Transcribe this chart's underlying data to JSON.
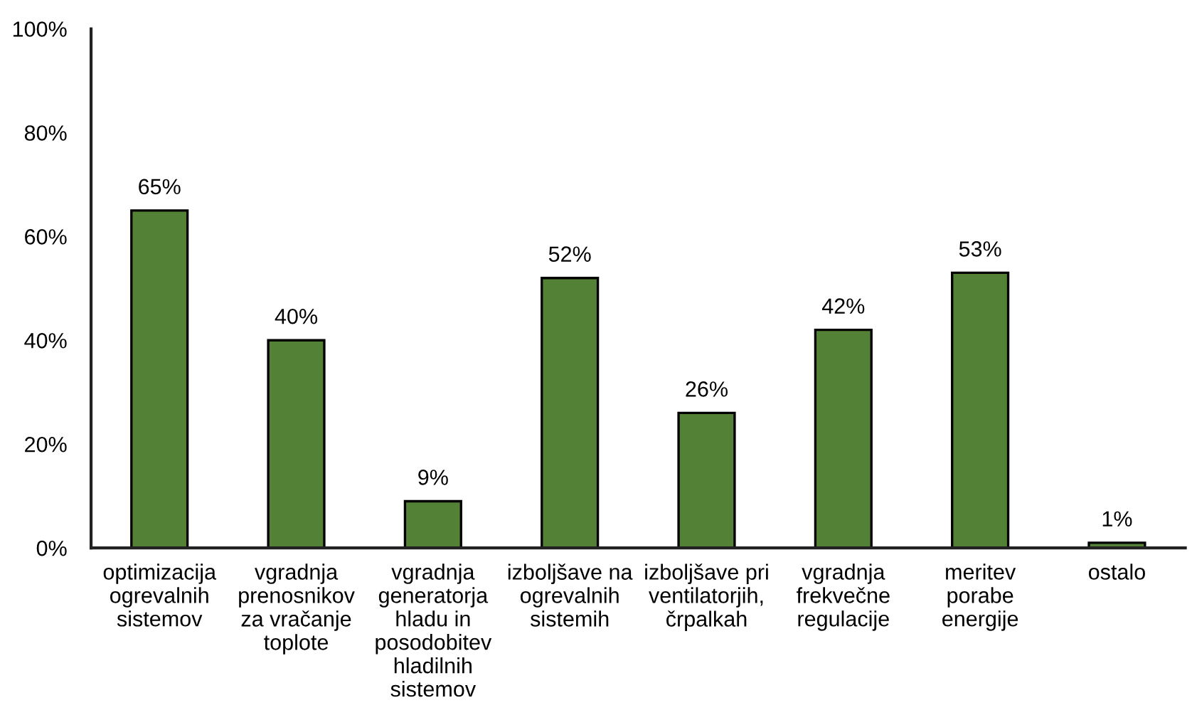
{
  "chart_data": {
    "type": "bar",
    "categories": [
      "optimizacija\nogrevalnih\nsistemov",
      "vgradnja\nprenosnikov\nza vračanje\ntoplote",
      "vgradnja\ngeneratorja\nhladu in\nposodobitev\nhladilnih\nsistemov",
      "izboljšave na\nogrevalnih\nsistemih",
      "izboljšave pri\nventilatorjih,\nčrpalkah",
      "vgradnja\nfrekvečne\nregulacije",
      "meritev\nporabe\nenergije",
      "ostalo"
    ],
    "values": [
      65,
      40,
      9,
      52,
      26,
      42,
      53,
      1
    ],
    "value_labels": [
      "65%",
      "40%",
      "9%",
      "52%",
      "26%",
      "42%",
      "53%",
      "1%"
    ],
    "color": "#538135",
    "ylim": [
      0,
      100
    ],
    "yticks": [
      {
        "value": 0,
        "label": "0%"
      },
      {
        "value": 20,
        "label": "20%"
      },
      {
        "value": 40,
        "label": "40%"
      },
      {
        "value": 60,
        "label": "60%"
      },
      {
        "value": 80,
        "label": "80%"
      },
      {
        "value": 100,
        "label": "100%"
      }
    ],
    "grid": false,
    "legend": false
  }
}
